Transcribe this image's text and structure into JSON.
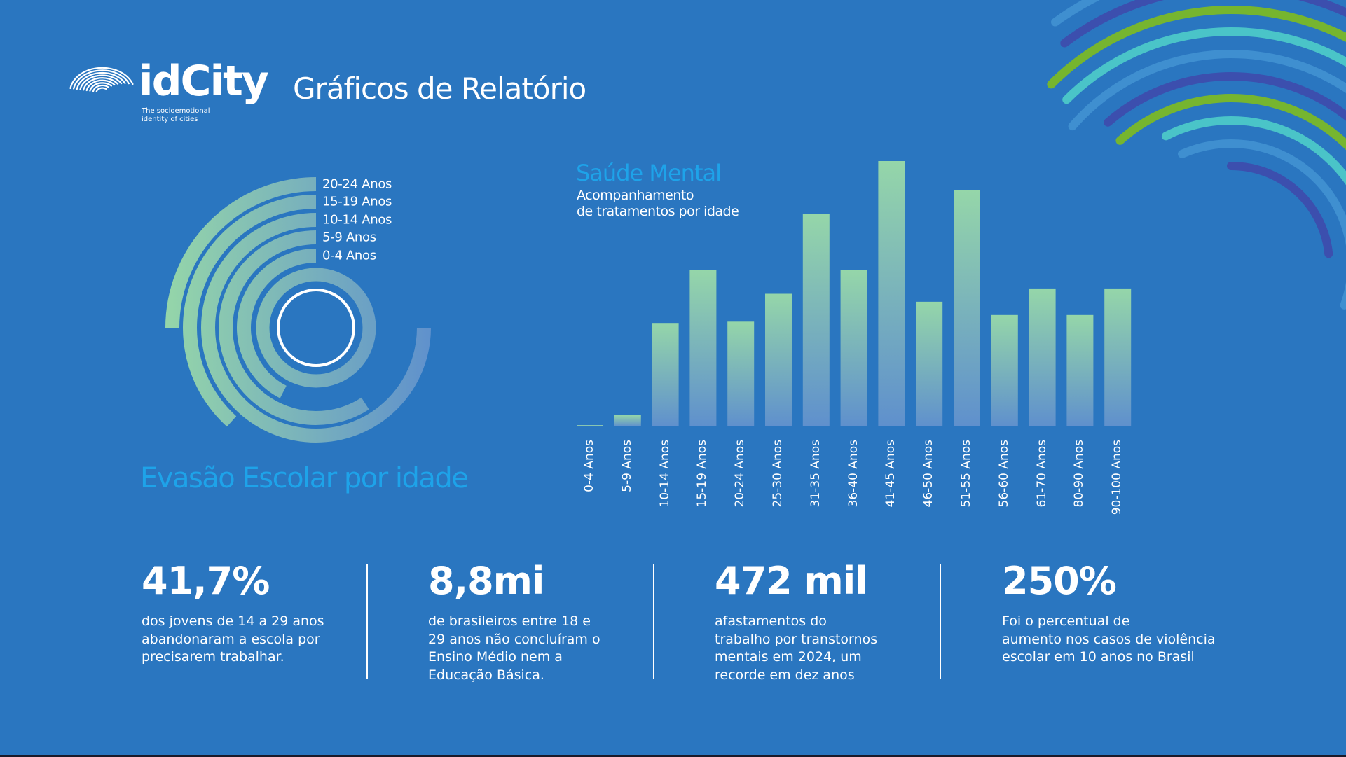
{
  "header": {
    "logo_name": "idCity",
    "logo_tagline_line1": "The socioemotional",
    "logo_tagline_line2": "identity of cities",
    "title": "Gráficos de Relatório"
  },
  "colors": {
    "background": "#2a76c0",
    "accent_title": "#1ea3e9",
    "gradient_top": "#95d6a9",
    "gradient_bottom": "#5f90cd",
    "deco_green": "#76b52f",
    "deco_teal": "#4ac4c8",
    "deco_light": "#3f8fd0",
    "deco_purple": "#3c4fae"
  },
  "chart_data": [
    {
      "type": "radial-bar",
      "title": "Evasão Escolar por idade",
      "series": [
        {
          "name": "20-24 Anos",
          "arc_degrees": 90
        },
        {
          "name": "15-19 Anos",
          "arc_degrees": 138
        },
        {
          "name": "10-14 Anos",
          "arc_degrees": 270
        },
        {
          "name": "5-9 Anos",
          "arc_degrees": 213
        },
        {
          "name": "0-4 Anos",
          "arc_degrees": 153
        }
      ]
    },
    {
      "type": "bar",
      "title": "Saúde Mental",
      "subtitle_line1": "Acompanhamento",
      "subtitle_line2": "de tratamentos por idade",
      "categories": [
        "0-4 Anos",
        "5-9 Anos",
        "10-14 Anos",
        "15-19 Anos",
        "20-24 Anos",
        "25-30 Anos",
        "31-35 Anos",
        "36-40 Anos",
        "41-45 Anos",
        "46-50 Anos",
        "51-55 Anos",
        "56-60 Anos",
        "61-70 Anos",
        "80-90 Anos",
        "90-100 Anos"
      ],
      "values": [
        0.4,
        4.3,
        39,
        59,
        39.5,
        50,
        80,
        59,
        100,
        47,
        89,
        42,
        52,
        42,
        52
      ],
      "value_scale": "relative (percent of tallest bar); no y-axis printed",
      "grid": false
    }
  ],
  "stats": [
    {
      "value": "41,7%",
      "desc": [
        "dos jovens de 14 a 29 anos",
        "abandonaram a escola por",
        "precisarem trabalhar."
      ]
    },
    {
      "value": "8,8mi",
      "desc": [
        "de brasileiros entre 18 e",
        "29 anos não concluíram o",
        "Ensino Médio nem a",
        "Educação Básica."
      ]
    },
    {
      "value": "472 mil",
      "desc": [
        "afastamentos do",
        "trabalho por transtornos",
        "mentais em 2024, um",
        "recorde em dez anos"
      ]
    },
    {
      "value": "250%",
      "desc": [
        "Foi o percentual de",
        "aumento nos casos de violência",
        "escolar em 10 anos no Brasil"
      ]
    }
  ]
}
